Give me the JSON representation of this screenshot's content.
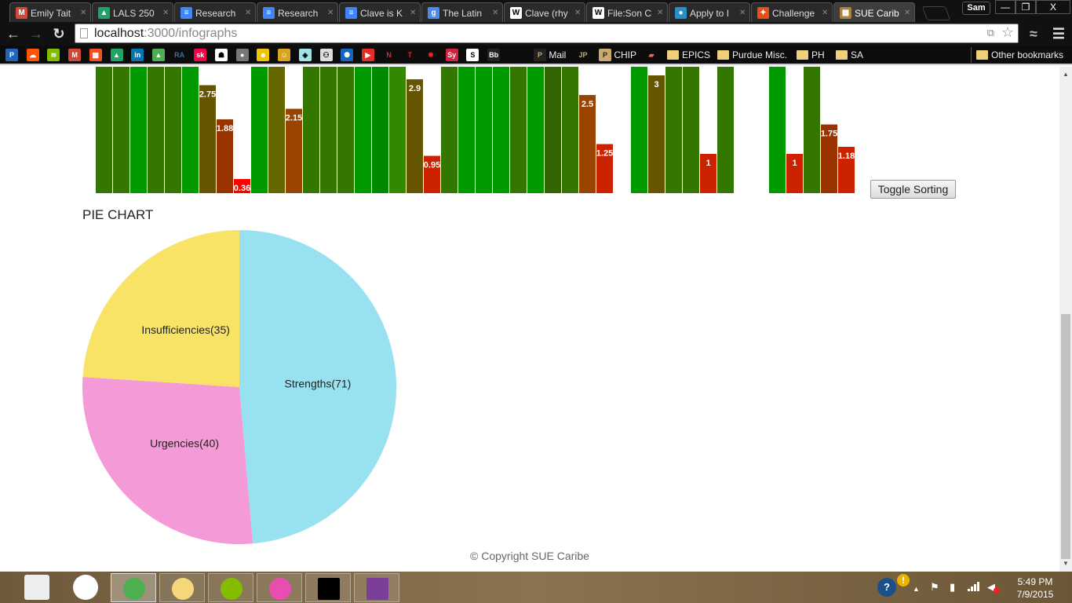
{
  "browser": {
    "tabs": [
      {
        "title": "Emily Tait",
        "icon": "gmail-icon",
        "color": "#d14836",
        "glyph": "M"
      },
      {
        "title": "LALS 250",
        "icon": "drive-icon",
        "color": "#1fa463",
        "glyph": "▲"
      },
      {
        "title": "Research",
        "icon": "docs-icon",
        "color": "#4285f4",
        "glyph": "≡"
      },
      {
        "title": "Research",
        "icon": "docs-icon",
        "color": "#4285f4",
        "glyph": "≡"
      },
      {
        "title": "Clave is K",
        "icon": "docs-icon",
        "color": "#4285f4",
        "glyph": "≡"
      },
      {
        "title": "The Latin",
        "icon": "google-icon",
        "color": "#4a8af4",
        "glyph": "g"
      },
      {
        "title": "Clave (rhy",
        "icon": "wikipedia-icon",
        "color": "#ffffff",
        "glyph": "W"
      },
      {
        "title": "File:Son C",
        "icon": "wikipedia-icon",
        "color": "#ffffff",
        "glyph": "W"
      },
      {
        "title": "Apply to I",
        "icon": "globe-icon",
        "color": "#2a8fc9",
        "glyph": "●"
      },
      {
        "title": "Challenge",
        "icon": "challenge-icon",
        "color": "#e84d1c",
        "glyph": "✦"
      },
      {
        "title": "SUE Carib",
        "icon": "sue-icon",
        "color": "#a9823c",
        "glyph": "▦"
      }
    ],
    "active_tab": 10,
    "profile": "Sam",
    "url_host": "localhost",
    "url_path": ":3000/infographs",
    "bookmarks": {
      "icons": [
        {
          "name": "pandora-icon",
          "color": "#2266bb",
          "glyph": "P"
        },
        {
          "name": "soundcloud-icon",
          "color": "#ff5500",
          "glyph": "☁"
        },
        {
          "name": "spotify-icon",
          "color": "#84bd00",
          "glyph": "≋"
        },
        {
          "name": "gmail-icon",
          "color": "#d14836",
          "glyph": "M"
        },
        {
          "name": "microsoft-icon",
          "color": "#f25022",
          "glyph": "▦"
        },
        {
          "name": "drive-icon",
          "color": "#1fa463",
          "glyph": "▲"
        },
        {
          "name": "linkedin-icon",
          "color": "#0077b5",
          "glyph": "in"
        },
        {
          "name": "mountain-icon",
          "color": "#4caf50",
          "glyph": "▲"
        },
        {
          "name": "ra-icon",
          "color": "#0c0c0c",
          "glyph": "RA"
        },
        {
          "name": "songkick-icon",
          "color": "#f80046",
          "glyph": "sk"
        },
        {
          "name": "robot-icon",
          "color": "#ffffff",
          "glyph": "☗"
        },
        {
          "name": "sphere-icon",
          "color": "#777777",
          "glyph": "●"
        },
        {
          "name": "yellow-icon",
          "color": "#f5c400",
          "glyph": "☻"
        },
        {
          "name": "face-icon",
          "color": "#d9a520",
          "glyph": "☺"
        },
        {
          "name": "shield-icon",
          "color": "#9fe3e6",
          "glyph": "◈"
        },
        {
          "name": "people-icon",
          "color": "#dddddd",
          "glyph": "⚇"
        },
        {
          "name": "group-icon",
          "color": "#1565c0",
          "glyph": "⚉"
        },
        {
          "name": "youtube-icon",
          "color": "#e52d27",
          "glyph": "▶"
        },
        {
          "name": "netflix-icon",
          "color": "#0c0c0c",
          "glyph": "N"
        },
        {
          "name": "t-icon",
          "color": "#0c0c0c",
          "glyph": "T"
        },
        {
          "name": "gear-icon",
          "color": "#0c0c0c",
          "glyph": "✹"
        },
        {
          "name": "sy-icon",
          "color": "#d1243c",
          "glyph": "Sy"
        },
        {
          "name": "s-icon",
          "color": "#ffffff",
          "glyph": "S"
        },
        {
          "name": "blackboard-icon",
          "color": "#222222",
          "glyph": "Bb"
        }
      ],
      "mail": "Mail",
      "chip": "CHIP",
      "folders": [
        "EPICS",
        "Purdue Misc.",
        "PH",
        "SA"
      ],
      "other": "Other bookmarks"
    }
  },
  "page": {
    "toggle_label": "Toggle Sorting",
    "pie_title": "PIE CHART",
    "copyright": "© Copyright SUE Caribe"
  },
  "chart_data": [
    {
      "type": "bar",
      "note": "top of tall bars scrolled out of view; their values are not visible",
      "units_per_label": "value shown inside bar top",
      "bars": [
        {
          "value": 4,
          "label": null,
          "color": "#337700"
        },
        {
          "value": 4,
          "label": null,
          "color": "#337700"
        },
        {
          "value": 4,
          "label": null,
          "color": "#009900"
        },
        {
          "value": 4,
          "label": null,
          "color": "#337700"
        },
        {
          "value": 4,
          "label": null,
          "color": "#337700"
        },
        {
          "value": 4,
          "label": null,
          "color": "#009900"
        },
        {
          "value": 2.75,
          "label": "2.75",
          "color": "#665500"
        },
        {
          "value": 1.88,
          "label": "1.88",
          "color": "#993300"
        },
        {
          "value": 0.36,
          "label": "0.36",
          "color": "#ff0000"
        },
        {
          "value": 4,
          "label": null,
          "color": "#009900"
        },
        {
          "value": 3.5,
          "label": null,
          "color": "#666600"
        },
        {
          "value": 2.15,
          "label": "2.15",
          "color": "#994400"
        },
        {
          "value": 4,
          "label": null,
          "color": "#337700"
        },
        {
          "value": 4,
          "label": null,
          "color": "#337700"
        },
        {
          "value": 4,
          "label": null,
          "color": "#337700"
        },
        {
          "value": 4,
          "label": null,
          "color": "#009900"
        },
        {
          "value": 4,
          "label": null,
          "color": "#008800"
        },
        {
          "value": 4,
          "label": null,
          "color": "#338800"
        },
        {
          "value": 2.9,
          "label": "2.9",
          "color": "#665500"
        },
        {
          "value": 0.95,
          "label": "0.95",
          "color": "#cc2200"
        },
        {
          "value": 4,
          "label": null,
          "color": "#337700"
        },
        {
          "value": 4,
          "label": null,
          "color": "#009900"
        },
        {
          "value": 4,
          "label": null,
          "color": "#009900"
        },
        {
          "value": 4,
          "label": null,
          "color": "#009900"
        },
        {
          "value": 4,
          "label": null,
          "color": "#337700"
        },
        {
          "value": 4,
          "label": null,
          "color": "#009900"
        },
        {
          "value": 4,
          "label": null,
          "color": "#336600"
        },
        {
          "value": 4,
          "label": null,
          "color": "#337700"
        },
        {
          "value": 2.5,
          "label": "2.5",
          "color": "#994400"
        },
        {
          "value": 1.25,
          "label": "1.25",
          "color": "#cc2200"
        },
        {
          "value": 0,
          "label": null,
          "color": "#ffffff"
        },
        {
          "value": 4,
          "label": null,
          "color": "#009900"
        },
        {
          "value": 3,
          "label": "3",
          "color": "#665500"
        },
        {
          "value": 4,
          "label": null,
          "color": "#337700"
        },
        {
          "value": 4,
          "label": null,
          "color": "#337700"
        },
        {
          "value": 1,
          "label": "1",
          "color": "#cc2200"
        },
        {
          "value": 4,
          "label": null,
          "color": "#337700"
        },
        {
          "value": 0,
          "label": null,
          "color": "#ffffff"
        },
        {
          "value": 0,
          "label": null,
          "color": "#ffffff"
        },
        {
          "value": 4,
          "label": null,
          "color": "#009900"
        },
        {
          "value": 1,
          "label": "1",
          "color": "#cc2200"
        },
        {
          "value": 4,
          "label": null,
          "color": "#337700"
        },
        {
          "value": 1.75,
          "label": "1.75",
          "color": "#993300"
        },
        {
          "value": 1.18,
          "label": "1.18",
          "color": "#cc2200"
        }
      ]
    },
    {
      "type": "pie",
      "title": "PIE CHART",
      "slices": [
        {
          "label": "Strengths",
          "value": 71,
          "text": "Strengths(71)",
          "color": "#98e1f0"
        },
        {
          "label": "Urgencies",
          "value": 40,
          "text": "Urgencies(40)",
          "color": "#f49ad6"
        },
        {
          "label": "Insufficiencies",
          "value": 35,
          "text": "Insufficiencies(35)",
          "color": "#f9e366"
        }
      ]
    }
  ],
  "taskbar": {
    "apps": [
      {
        "name": "start-apps",
        "color": "#eeeeee"
      },
      {
        "name": "hp",
        "color": "#ffffff"
      },
      {
        "name": "chrome",
        "color": "#4caf50"
      },
      {
        "name": "file-explorer",
        "color": "#f5d77b"
      },
      {
        "name": "spotify",
        "color": "#84bd00"
      },
      {
        "name": "itunes",
        "color": "#e94db0"
      },
      {
        "name": "command-prompt",
        "color": "#000000"
      },
      {
        "name": "onenote",
        "color": "#7b3f99"
      }
    ],
    "time": "5:49 PM",
    "date": "7/9/2015"
  }
}
